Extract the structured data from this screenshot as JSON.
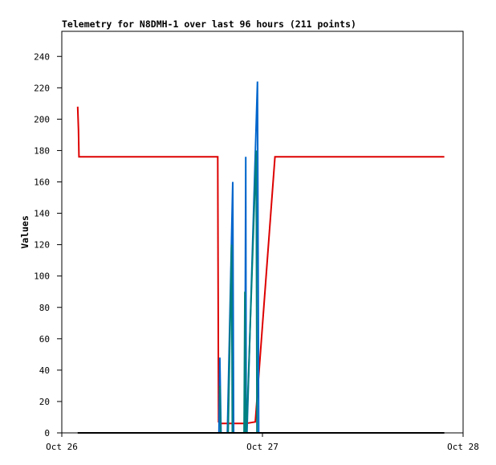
{
  "chart_data": {
    "type": "line",
    "title": "Telemetry for N8DMH-1 over last 96 hours (211 points)",
    "xlabel": "",
    "ylabel": "Values",
    "x_ticks": [
      "Oct 26",
      "Oct 27",
      "Oct 28"
    ],
    "x_domain_hours": [
      0,
      96
    ],
    "y_ticks": [
      0,
      20,
      40,
      60,
      80,
      100,
      120,
      140,
      160,
      180,
      200,
      220,
      240
    ],
    "ylim": [
      0,
      256
    ],
    "grid": false,
    "legend": "none",
    "series": [
      {
        "color": "#dd0000",
        "points": [
          [
            3.8,
            208
          ],
          [
            4.0,
            193
          ],
          [
            4.1,
            176
          ],
          [
            37.3,
            176
          ],
          [
            37.5,
            7
          ],
          [
            38.1,
            6
          ],
          [
            44.0,
            6
          ],
          [
            46.3,
            7
          ],
          [
            51.0,
            176
          ],
          [
            91.5,
            176
          ]
        ]
      },
      {
        "color": "#0066cc",
        "points": [
          [
            37.6,
            0
          ],
          [
            37.8,
            48
          ],
          [
            38.1,
            0
          ],
          [
            38.4,
            0
          ],
          [
            39.6,
            0
          ],
          [
            40.9,
            160
          ],
          [
            41.1,
            0
          ],
          [
            43.8,
            0
          ],
          [
            44.0,
            176
          ],
          [
            44.1,
            0
          ],
          [
            44.3,
            0
          ],
          [
            46.8,
            224
          ],
          [
            47.1,
            0
          ]
        ]
      },
      {
        "color": "#008080",
        "points": [
          [
            37.8,
            30
          ],
          [
            38.0,
            0
          ],
          [
            39.8,
            0
          ],
          [
            40.6,
            120
          ],
          [
            40.8,
            0
          ],
          [
            43.6,
            0
          ],
          [
            43.8,
            90
          ],
          [
            44.0,
            0
          ],
          [
            44.2,
            0
          ],
          [
            46.5,
            180
          ],
          [
            46.7,
            0
          ]
        ]
      },
      {
        "color": "#000000",
        "points": [
          [
            3.8,
            0
          ],
          [
            91.5,
            0
          ]
        ]
      }
    ]
  }
}
